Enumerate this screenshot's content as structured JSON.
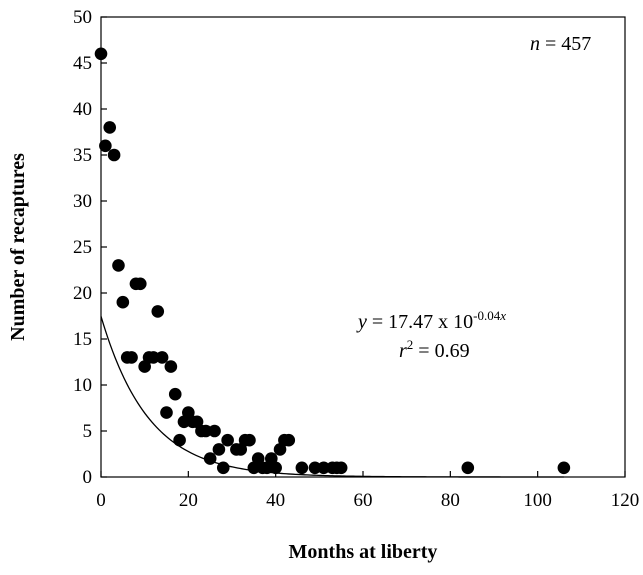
{
  "chart_data": {
    "type": "scatter",
    "xlabel": "Months at liberty",
    "ylabel": "Number of recaptures",
    "xlim": [
      0,
      120
    ],
    "ylim": [
      0,
      50
    ],
    "x_ticks": [
      "0",
      "20",
      "40",
      "60",
      "80",
      "100",
      "120"
    ],
    "y_ticks": [
      "0",
      "5",
      "10",
      "15",
      "20",
      "25",
      "30",
      "35",
      "40",
      "45",
      "50"
    ],
    "grid": false,
    "legend": "none",
    "marker_color": "#000000",
    "series": [
      {
        "points": [
          [
            0,
            46
          ],
          [
            1,
            36
          ],
          [
            2,
            38
          ],
          [
            3,
            35
          ],
          [
            4,
            23
          ],
          [
            5,
            19
          ],
          [
            6,
            13
          ],
          [
            7,
            13
          ],
          [
            8,
            21
          ],
          [
            9,
            21
          ],
          [
            10,
            12
          ],
          [
            11,
            13
          ],
          [
            12,
            13
          ],
          [
            13,
            18
          ],
          [
            14,
            13
          ],
          [
            15,
            7
          ],
          [
            16,
            12
          ],
          [
            17,
            9
          ],
          [
            18,
            4
          ],
          [
            19,
            6
          ],
          [
            20,
            7
          ],
          [
            21,
            6
          ],
          [
            22,
            6
          ],
          [
            23,
            5
          ],
          [
            24,
            5
          ],
          [
            25,
            2
          ],
          [
            26,
            5
          ],
          [
            27,
            3
          ],
          [
            28,
            1
          ],
          [
            29,
            4
          ],
          [
            31,
            3
          ],
          [
            32,
            3
          ],
          [
            33,
            4
          ],
          [
            34,
            4
          ],
          [
            35,
            1
          ],
          [
            36,
            2
          ],
          [
            37,
            1
          ],
          [
            38,
            1
          ],
          [
            39,
            2
          ],
          [
            40,
            1
          ],
          [
            41,
            3
          ],
          [
            42,
            4
          ],
          [
            43,
            4
          ],
          [
            46,
            1
          ],
          [
            49,
            1
          ],
          [
            51,
            1
          ],
          [
            53,
            1
          ],
          [
            54,
            1
          ],
          [
            55,
            1
          ],
          [
            84,
            1
          ],
          [
            106,
            1
          ]
        ]
      }
    ],
    "fit": {
      "type": "exponential",
      "a": 17.47,
      "b": -0.04,
      "x_range": [
        0,
        106
      ]
    },
    "annotations": {
      "n_prefix": "n",
      "n_value": " = 457",
      "eq_y": "y",
      "eq_mid": " = 17.47 x 10",
      "eq_exp": "-0.04",
      "eq_exp_x": "x",
      "r_r": "r",
      "r_sup": "2",
      "r_value": " = 0.69"
    }
  }
}
